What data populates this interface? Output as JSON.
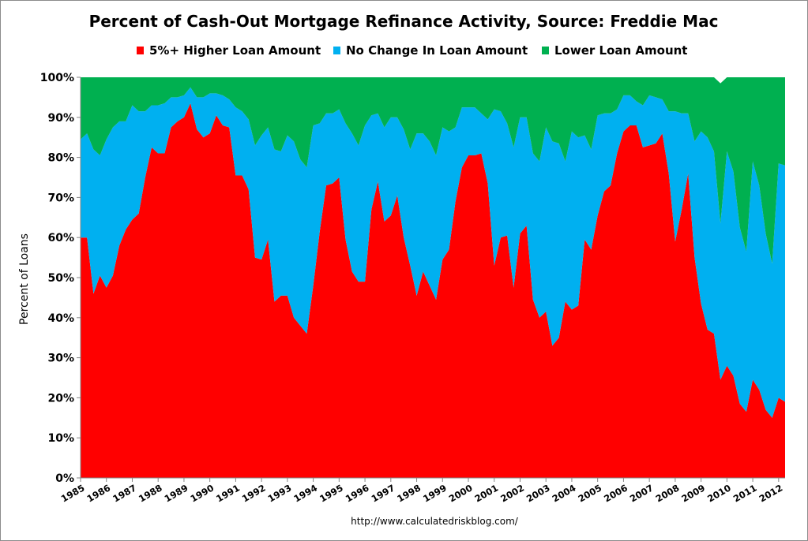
{
  "chart_data": {
    "type": "area",
    "stacked": true,
    "title": "Percent of Cash-Out Mortgage Refinance Activity, Source: Freddie Mac",
    "xlabel": "",
    "ylabel": "Percent of Loans",
    "source_note": "http://www.calculatedriskblog.com/",
    "grid": false,
    "legend_position": "top",
    "ylim": [
      0,
      100
    ],
    "yticks": [
      0,
      10,
      20,
      30,
      40,
      50,
      60,
      70,
      80,
      90,
      100
    ],
    "ytick_labels": [
      "0%",
      "10%",
      "20%",
      "30%",
      "40%",
      "50%",
      "60%",
      "70%",
      "80%",
      "90%",
      "100%"
    ],
    "x_start_year": 1985,
    "periods_per_year": 4,
    "xtick_labels": [
      "1985",
      "1986",
      "1987",
      "1988",
      "1989",
      "1990",
      "1991",
      "1992",
      "1993",
      "1994",
      "1995",
      "1996",
      "1997",
      "1998",
      "1999",
      "2000",
      "2001",
      "2002",
      "2003",
      "2004",
      "2005",
      "2006",
      "2007",
      "2008",
      "2009",
      "2010",
      "2011",
      "2012"
    ],
    "series": [
      {
        "name": "5%+ Higher Loan Amount",
        "color": "#ff0000",
        "values": [
          60,
          60,
          46,
          50.5,
          47.5,
          50.5,
          58,
          62,
          64.5,
          66,
          75,
          82.5,
          81,
          81,
          87.5,
          89,
          90,
          93.5,
          87,
          85,
          86,
          90.5,
          88,
          87.5,
          75.5,
          75.5,
          72,
          55,
          54.5,
          59.5,
          44,
          45.5,
          45.5,
          40,
          38,
          36,
          48,
          61.5,
          73,
          73.5,
          75,
          59.5,
          51.5,
          49,
          49,
          67,
          74,
          64,
          65.5,
          70.5,
          60,
          53,
          45.5,
          51.5,
          48,
          44.5,
          54.5,
          57,
          69,
          77.5,
          80.5,
          80.5,
          81,
          73.5,
          53,
          60,
          60.5,
          47.5,
          61,
          63,
          44.5,
          40,
          41.5,
          33,
          35,
          44,
          42,
          43,
          59.5,
          57,
          65.5,
          71.5,
          73,
          81,
          86.5,
          88,
          88,
          82.5,
          83,
          83.5,
          86,
          76,
          59,
          67,
          76,
          55,
          43.5,
          37,
          36,
          24.5,
          28,
          25.5,
          18.5,
          16.5,
          24.5,
          22,
          17,
          15,
          20,
          19
        ]
      },
      {
        "name": "No Change In Loan Amount",
        "color": "#00b0f0",
        "values": [
          24.5,
          26,
          36,
          30,
          37,
          37,
          31,
          27,
          28.5,
          25.5,
          16.5,
          10.5,
          12,
          12.5,
          7.5,
          6,
          5.5,
          4,
          8,
          10,
          10,
          5.5,
          7.5,
          7,
          17,
          16,
          17.5,
          28,
          31,
          28,
          38,
          36,
          40,
          44,
          41.5,
          41.5,
          40,
          27,
          18,
          17.5,
          17,
          29,
          34.5,
          34,
          39,
          23.5,
          17,
          23.5,
          24.5,
          19.5,
          27,
          29,
          40.5,
          34.5,
          36,
          36,
          33,
          29.5,
          18.5,
          15,
          12,
          12,
          10,
          16,
          39,
          31.5,
          28,
          35,
          29,
          27,
          36.5,
          39,
          46,
          51,
          48.5,
          35,
          44.5,
          42,
          26,
          25,
          25,
          19.5,
          18,
          11,
          9,
          7.5,
          6,
          10.5,
          12.5,
          11.5,
          8.5,
          15.5,
          32.5,
          24,
          15,
          29,
          43,
          48,
          45.5,
          39,
          53.5,
          51,
          44,
          40,
          54.5,
          51,
          44,
          38.5,
          58.5,
          59
        ]
      },
      {
        "name": "Lower Loan Amount",
        "color": "#00b050",
        "values": [
          15.5,
          14,
          18,
          19.5,
          15.5,
          12.5,
          11,
          11,
          7,
          8.5,
          8.5,
          7,
          7,
          6.5,
          5,
          5,
          4.5,
          2.5,
          5,
          5,
          4,
          4,
          4.5,
          5.5,
          7.5,
          8.5,
          10.5,
          17,
          14.5,
          12.5,
          18,
          18.5,
          14.5,
          16,
          20.5,
          22.5,
          12,
          11.5,
          9,
          9,
          8,
          11.5,
          14,
          17,
          12,
          9.5,
          9,
          12.5,
          10,
          10,
          13,
          18,
          14,
          14,
          16,
          19.5,
          12.5,
          13.5,
          12.5,
          7.5,
          7.5,
          7.5,
          9,
          10.5,
          8,
          8.5,
          11.5,
          17.5,
          10,
          10,
          19,
          21,
          12.5,
          16,
          16.5,
          21,
          13.5,
          15,
          14.5,
          18,
          9.5,
          9,
          9,
          8,
          4.5,
          4.5,
          6,
          7,
          4.5,
          5,
          5.5,
          8.5,
          8.5,
          9,
          9,
          16,
          13.5,
          15,
          18.5,
          35,
          18.5,
          23.5,
          37.5,
          43.5,
          21,
          27,
          39,
          46.5,
          21.5,
          22
        ]
      }
    ]
  }
}
